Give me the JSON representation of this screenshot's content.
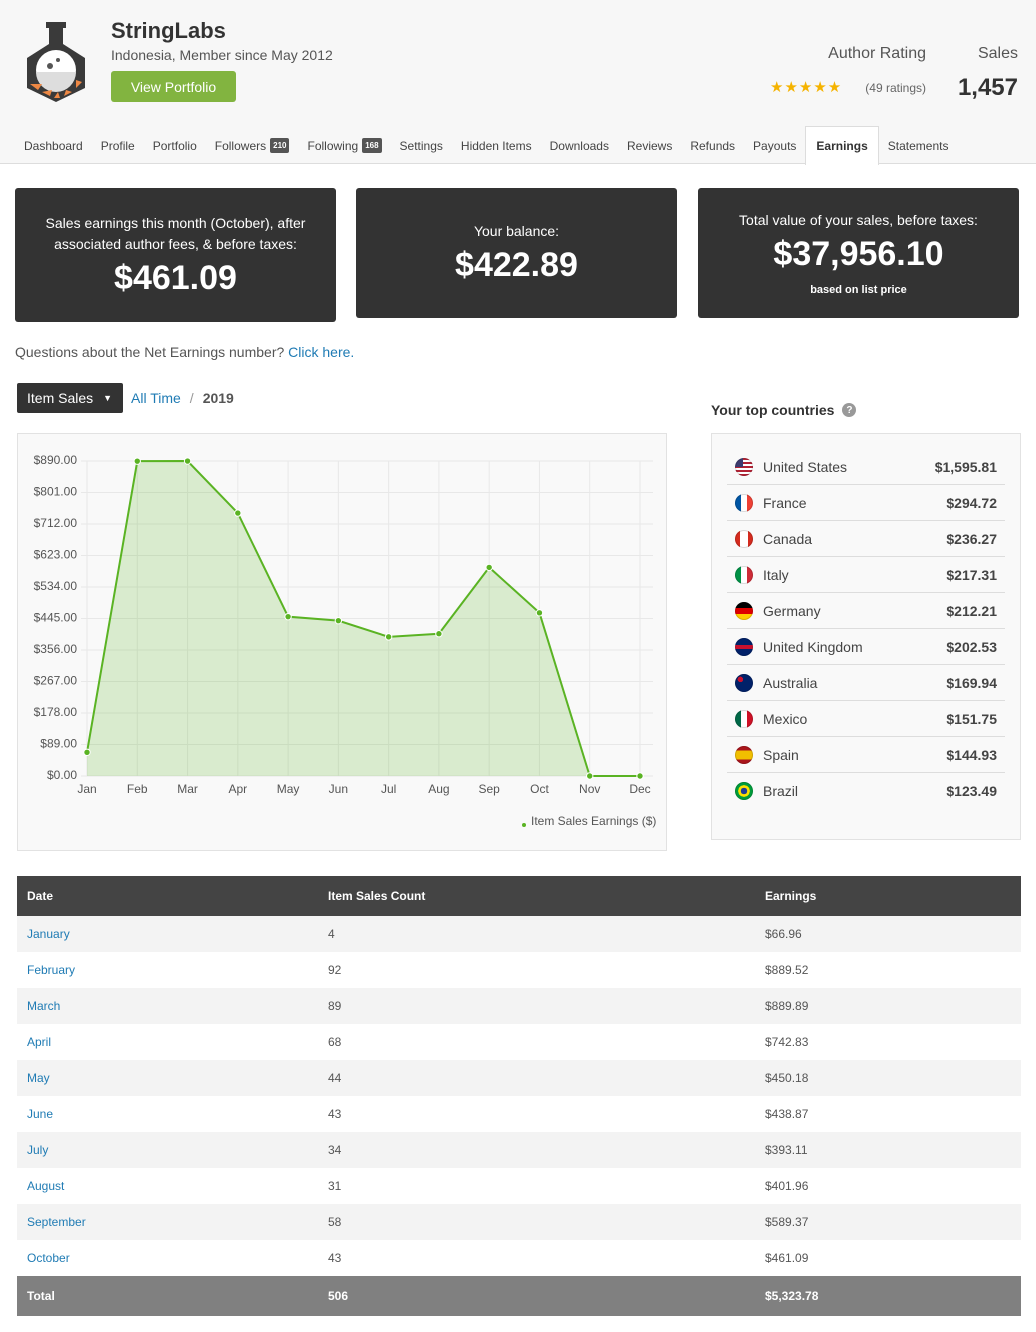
{
  "header": {
    "name": "StringLabs",
    "location": "Indonesia, Member since May 2012",
    "button": "View Portfolio",
    "rating_label": "Author Rating",
    "ratings": "(49 ratings)",
    "sales_label": "Sales",
    "sales": "1,457"
  },
  "nav": {
    "tabs": [
      {
        "label": "Dashboard"
      },
      {
        "label": "Profile"
      },
      {
        "label": "Portfolio"
      },
      {
        "label": "Followers",
        "badge": 210
      },
      {
        "label": "Following",
        "badge": 168
      },
      {
        "label": "Settings"
      },
      {
        "label": "Hidden Items"
      },
      {
        "label": "Downloads"
      },
      {
        "label": "Reviews"
      },
      {
        "label": "Refunds"
      },
      {
        "label": "Payouts"
      },
      {
        "label": "Earnings",
        "active": true
      },
      {
        "label": "Statements"
      }
    ]
  },
  "cards": [
    {
      "text": "Sales earnings this month (October), after associated author fees, & before taxes:",
      "amount": "$461.09"
    },
    {
      "text": "Your balance:",
      "amount": "$422.89"
    },
    {
      "text": "Total value of your sales, before taxes:",
      "amount": "$37,956.10",
      "note": "based on list price"
    }
  ],
  "notice": {
    "text": "Questions about the Net Earnings number?",
    "link": "Click here."
  },
  "filter": {
    "dropdown": "Item Sales",
    "link": "All Time",
    "separator": "/",
    "current": "2019"
  },
  "chart_data": {
    "type": "line",
    "categories": [
      "Jan",
      "Feb",
      "Mar",
      "Apr",
      "May",
      "Jun",
      "Jul",
      "Aug",
      "Sep",
      "Oct",
      "Nov",
      "Dec"
    ],
    "series": [
      {
        "name": "Item Sales Earnings ($)",
        "color": "#5ab323",
        "values": [
          66.96,
          889.52,
          889.89,
          742.83,
          450.18,
          438.87,
          393.11,
          401.96,
          589.37,
          461.09,
          0,
          0
        ]
      }
    ],
    "ylim": [
      0,
      890
    ],
    "yticks": [
      {
        "value": 0,
        "label": "$0.00"
      },
      {
        "value": 89,
        "label": "$89.00"
      },
      {
        "value": 178,
        "label": "$178.00"
      },
      {
        "value": 267,
        "label": "$267.00"
      },
      {
        "value": 356,
        "label": "$356.00"
      },
      {
        "value": 445,
        "label": "$445.00"
      },
      {
        "value": 534,
        "label": "$534.00"
      },
      {
        "value": 623,
        "label": "$623.00"
      },
      {
        "value": 712,
        "label": "$712.00"
      },
      {
        "value": 801,
        "label": "$801.00"
      },
      {
        "value": 890,
        "label": "$890.00"
      }
    ],
    "grid": true,
    "area": true,
    "legend": "bottom-right"
  },
  "countries": {
    "title": "Your top countries",
    "help": "?",
    "rows": [
      {
        "name": "United States",
        "amount": "$1,595.81"
      },
      {
        "name": "France",
        "amount": "$294.72"
      },
      {
        "name": "Canada",
        "amount": "$236.27"
      },
      {
        "name": "Italy",
        "amount": "$217.31"
      },
      {
        "name": "Germany",
        "amount": "$212.21"
      },
      {
        "name": "United Kingdom",
        "amount": "$202.53"
      },
      {
        "name": "Australia",
        "amount": "$169.94"
      },
      {
        "name": "Mexico",
        "amount": "$151.75"
      },
      {
        "name": "Spain",
        "amount": "$144.93"
      },
      {
        "name": "Brazil",
        "amount": "$123.49"
      }
    ]
  },
  "table": {
    "columns": [
      "Date",
      "Item Sales Count",
      "Earnings"
    ],
    "rows": [
      [
        "January",
        4,
        "$66.96"
      ],
      [
        "February",
        92,
        "$889.52"
      ],
      [
        "March",
        89,
        "$889.89"
      ],
      [
        "April",
        68,
        "$742.83"
      ],
      [
        "May",
        44,
        "$450.18"
      ],
      [
        "June",
        43,
        "$438.87"
      ],
      [
        "July",
        34,
        "$393.11"
      ],
      [
        "August",
        31,
        "$401.96"
      ],
      [
        "September",
        58,
        "$589.37"
      ],
      [
        "October",
        43,
        "$461.09"
      ]
    ],
    "total": [
      "Total",
      506,
      "$5,323.78"
    ]
  }
}
